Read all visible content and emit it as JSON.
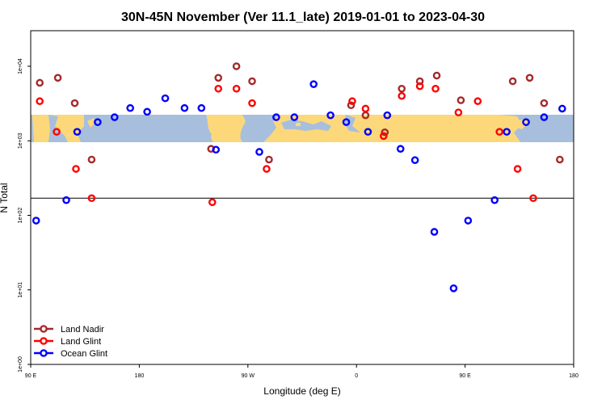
{
  "chart_data": {
    "type": "scatter",
    "title": "30N-45N November (Ver 11.1_late)   2019-01-01 to 2023-04-30",
    "xlabel": "Longitude (deg E)",
    "ylabel": "N Total",
    "y_scale": "log",
    "xlim": [
      90,
      540
    ],
    "ylim": [
      1,
      30000
    ],
    "x_ticks": [
      90,
      180,
      270,
      360,
      450,
      540
    ],
    "x_tick_labels": [
      "90 E",
      "180",
      "90 W",
      "0",
      "90 E",
      "180"
    ],
    "y_ticks": [
      1,
      10,
      100,
      1000,
      10000
    ],
    "y_tick_labels": [
      "1e+00",
      "1e+01",
      "1e+02",
      "1e+03",
      "1e+04"
    ],
    "reference_line_y": 170,
    "map_band": {
      "lat_from": 30,
      "lat_to": 45,
      "land_color": "#fcd87a",
      "ocean_color": "#a7bfdc"
    },
    "legend_position": "bottom-left",
    "series": [
      {
        "name": "Land Nadir",
        "color": "#a52a2a",
        "points": [
          [
            97.5,
            6000
          ],
          [
            112.5,
            7000
          ],
          [
            126.5,
            3200
          ],
          [
            140.5,
            560
          ],
          [
            239.5,
            780
          ],
          [
            245.5,
            7000
          ],
          [
            260.5,
            10000
          ],
          [
            273.5,
            6300
          ],
          [
            287.5,
            560
          ],
          [
            355.5,
            3000
          ],
          [
            367.5,
            2200
          ],
          [
            383.5,
            1300
          ],
          [
            397.5,
            5000
          ],
          [
            412.5,
            6300
          ],
          [
            426.5,
            7500
          ],
          [
            446.5,
            3500
          ],
          [
            489.5,
            6300
          ],
          [
            503.5,
            7000
          ],
          [
            515.5,
            3200
          ],
          [
            528.5,
            560
          ]
        ]
      },
      {
        "name": "Land Glint",
        "color": "#ff0000",
        "points": [
          [
            97.5,
            3400
          ],
          [
            111.5,
            1320
          ],
          [
            127.5,
            420
          ],
          [
            140.5,
            170
          ],
          [
            240.5,
            150
          ],
          [
            245.5,
            5000
          ],
          [
            260.5,
            5000
          ],
          [
            273.5,
            3200
          ],
          [
            285.5,
            420
          ],
          [
            356.5,
            3400
          ],
          [
            367.5,
            2700
          ],
          [
            382.5,
            1160
          ],
          [
            397.5,
            4000
          ],
          [
            412.5,
            5400
          ],
          [
            425.5,
            5000
          ],
          [
            444.5,
            2400
          ],
          [
            460.5,
            3400
          ],
          [
            478.5,
            1320
          ],
          [
            493.5,
            420
          ],
          [
            506.5,
            170
          ]
        ]
      },
      {
        "name": "Ocean Glint",
        "color": "#0000ff",
        "points": [
          [
            94.5,
            85
          ],
          [
            119.5,
            160
          ],
          [
            128.5,
            1320
          ],
          [
            145.5,
            1780
          ],
          [
            159.5,
            2070
          ],
          [
            172.5,
            2750
          ],
          [
            186.5,
            2450
          ],
          [
            201.5,
            3720
          ],
          [
            217.5,
            2750
          ],
          [
            231.5,
            2750
          ],
          [
            243.5,
            760
          ],
          [
            279.5,
            710
          ],
          [
            293.5,
            2070
          ],
          [
            308.5,
            2070
          ],
          [
            324.5,
            5750
          ],
          [
            338.5,
            2200
          ],
          [
            351.5,
            1780
          ],
          [
            369.5,
            1320
          ],
          [
            385.5,
            2200
          ],
          [
            396.5,
            780
          ],
          [
            408.5,
            550
          ],
          [
            424.5,
            60
          ],
          [
            440.5,
            10.5
          ],
          [
            452.5,
            85
          ],
          [
            474.5,
            160
          ],
          [
            484.5,
            1320
          ],
          [
            500.5,
            1780
          ],
          [
            515.5,
            2070
          ],
          [
            530.5,
            2700
          ]
        ]
      }
    ]
  }
}
